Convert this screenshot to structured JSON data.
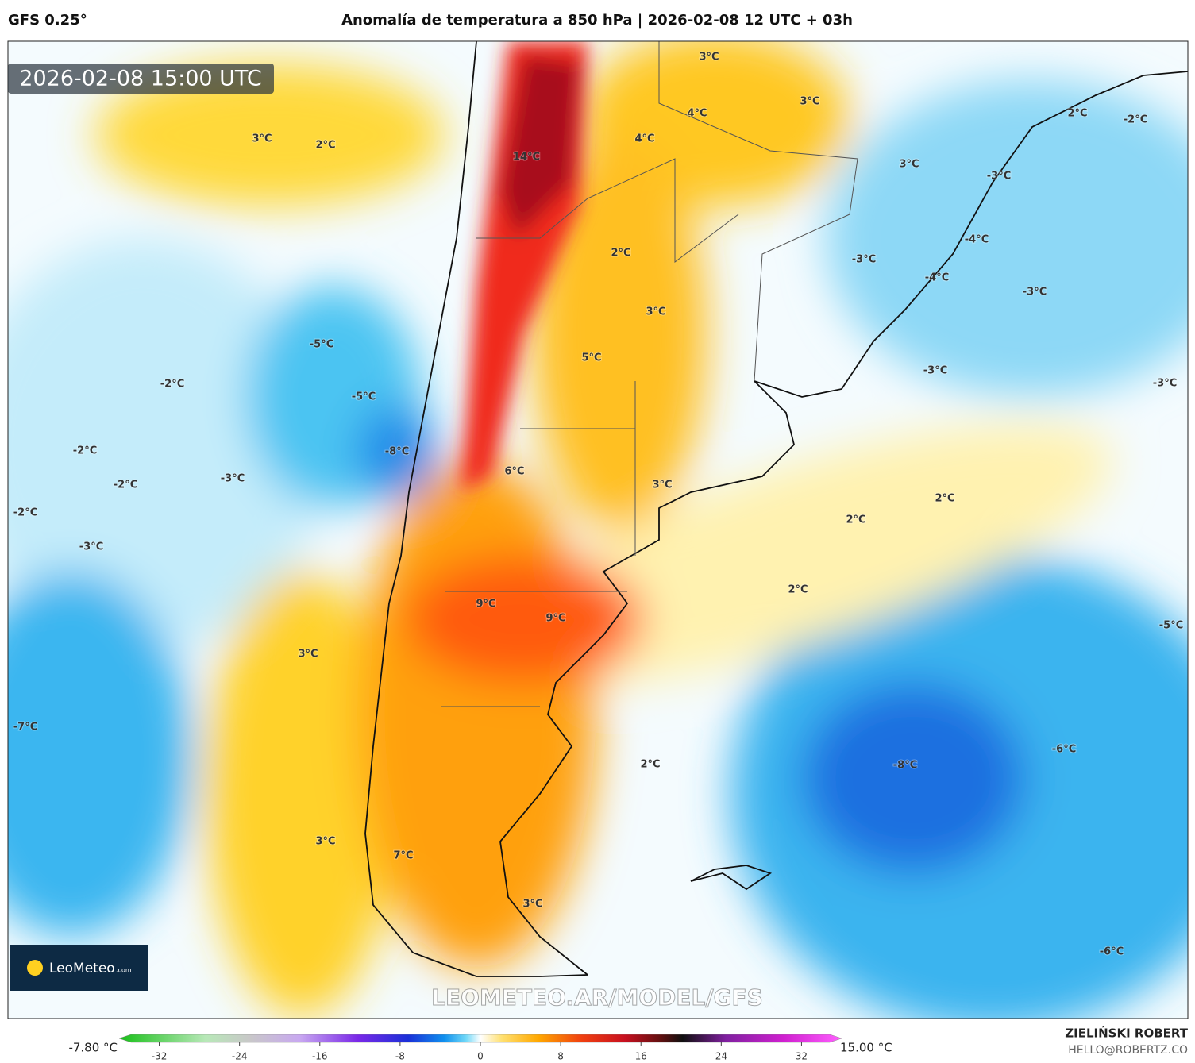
{
  "header": {
    "model": "GFS 0.25°",
    "title": "Anomalía de temperatura a 850 hPa | 2026-02-08 12 UTC + 03h"
  },
  "timestamp": "2026-02-08 15:00 UTC",
  "watermark": "LEOMETEO.AR/MODEL/GFS",
  "logo": {
    "name": "LeoMeteo",
    "suffix": ".com"
  },
  "map_labels": [
    "3°C",
    "2°C",
    "3°C",
    "4°C",
    "3°C",
    "4°C",
    "14°C",
    "3°C",
    "2°C",
    "-2°C",
    "-3°C",
    "-4°C",
    "-3°C",
    "-4°C",
    "-3°C",
    "2°C",
    "3°C",
    "-5°C",
    "5°C",
    "-3°C",
    "-3°C",
    "-2°C",
    "-5°C",
    "-8°C",
    "-2°C",
    "6°C",
    "-3°C",
    "-2°C",
    "3°C",
    "2°C",
    "-2°C",
    "2°C",
    "-3°C",
    "2°C",
    "9°C",
    "9°C",
    "-5°C",
    "3°C",
    "-7°C",
    "-6°C",
    "2°C",
    "-8°C",
    "3°C",
    "7°C",
    "3°C",
    "-6°C"
  ],
  "colorbar": {
    "min_label": "-7.80 °C",
    "max_label": "15.00 °C",
    "lim": [
      -36,
      36
    ],
    "ticks": [
      -32,
      -24,
      -16,
      -8,
      0,
      8,
      16,
      24,
      32
    ]
  },
  "footer": {
    "author": "ZIELIŃSKI ROBERT",
    "email": "HELLO@ROBERTZ.CO"
  }
}
